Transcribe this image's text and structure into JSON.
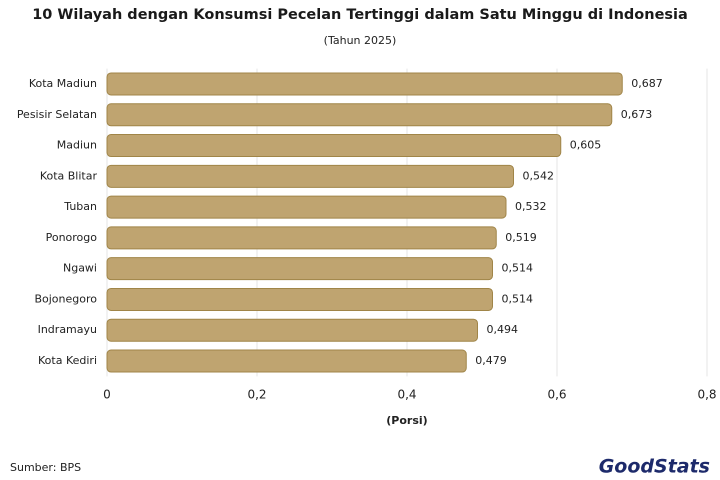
{
  "chart_data": {
    "type": "bar",
    "orientation": "horizontal",
    "title": "10 Wilayah dengan Konsumsi Pecelan Tertinggi dalam Satu Minggu di Indonesia",
    "subtitle": "(Tahun 2025)",
    "x_label": "(Porsi)",
    "source": "Sumber: BPS",
    "logo": "GoodStats",
    "categories": [
      "Kota Madiun",
      "Pesisir Selatan",
      "Madiun",
      "Kota Blitar",
      "Tuban",
      "Ponorogo",
      "Ngawi",
      "Bojonegoro",
      "Indramayu",
      "Kota Kediri"
    ],
    "values": [
      0.687,
      0.673,
      0.605,
      0.542,
      0.532,
      0.519,
      0.514,
      0.514,
      0.494,
      0.479
    ],
    "value_labels": [
      "0,687",
      "0,673",
      "0,605",
      "0,542",
      "0,532",
      "0,519",
      "0,514",
      "0,514",
      "0,494",
      "0,479"
    ],
    "color": "#bfa470",
    "xlim": [
      0,
      0.8
    ],
    "xticks": [
      0,
      {
        "value": 0.2,
        "label": "0,2"
      },
      {
        "value": 0.4,
        "label": "0,4"
      },
      {
        "value": 0.6,
        "label": "0,6"
      },
      {
        "value": 0.8,
        "label": "0,8"
      }
    ],
    "grid": true
  }
}
